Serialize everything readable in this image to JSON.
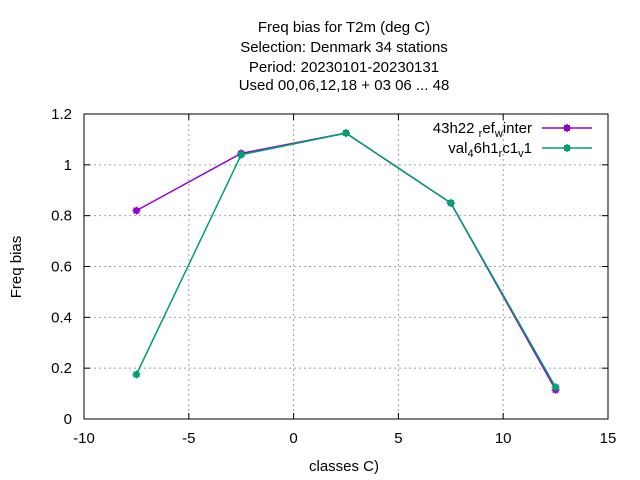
{
  "chart_data": {
    "type": "line",
    "title_lines": [
      "Freq bias  for T2m (deg C)",
      "Selection: Denmark     34 stations",
      "Period: 20230101-20230131",
      "Used  00,06,12,18  + 03 06 ... 48"
    ],
    "xlabel": "classes C)",
    "ylabel": "Freq bias",
    "xlim": [
      -10,
      15
    ],
    "ylim": [
      0,
      1.2
    ],
    "xticks": [
      -10,
      -5,
      0,
      5,
      10,
      15
    ],
    "yticks": [
      0,
      0.2,
      0.4,
      0.6,
      0.8,
      1,
      1.2
    ],
    "xtick_labels": [
      "-10",
      "-5",
      "0",
      "5",
      "10",
      "15"
    ],
    "ytick_labels": [
      "0",
      "0.2",
      "0.4",
      "0.6",
      "0.8",
      "1",
      "1.2"
    ],
    "grid": true,
    "legend_position": "top-right",
    "series": [
      {
        "name": "43h22_ref_winter",
        "legend_parts": [
          [
            "43h22 ",
            ""
          ],
          [
            "r",
            "sub"
          ],
          [
            "ef",
            ""
          ],
          [
            "w",
            "sub"
          ],
          [
            "inter",
            ""
          ]
        ],
        "color": "#9400d3",
        "x": [
          -7.5,
          -2.5,
          2.5,
          7.5,
          12.5
        ],
        "y": [
          0.82,
          1.045,
          1.125,
          0.85,
          0.115
        ]
      },
      {
        "name": "val_46h1_rc1_v1",
        "legend_parts": [
          [
            "val",
            ""
          ],
          [
            "4",
            "sub"
          ],
          [
            "6h1",
            ""
          ],
          [
            "r",
            "sub"
          ],
          [
            "c1",
            ""
          ],
          [
            "v",
            "sub"
          ],
          [
            "1",
            ""
          ]
        ],
        "color": "#009e73",
        "x": [
          -7.5,
          -2.5,
          2.5,
          7.5,
          12.5
        ],
        "y": [
          0.175,
          1.04,
          1.125,
          0.85,
          0.125
        ]
      }
    ]
  }
}
